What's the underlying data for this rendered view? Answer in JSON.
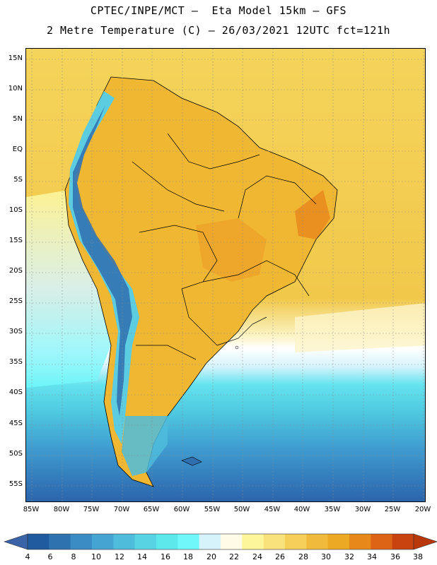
{
  "header": {
    "line1": "CPTEC/INPE/MCT –  Eta Model 15km – GFS",
    "line2": "2 Metre Temperature (C) – 26/03/2021 12UTC fct=121h"
  },
  "map": {
    "region": "South America",
    "lat_labels": [
      "15N",
      "10N",
      "5N",
      "EQ",
      "5S",
      "10S",
      "15S",
      "20S",
      "25S",
      "30S",
      "35S",
      "40S",
      "45S",
      "50S",
      "55S"
    ],
    "lon_labels": [
      "85W",
      "80W",
      "75W",
      "70W",
      "65W",
      "60W",
      "55W",
      "50W",
      "45W",
      "40W",
      "35W",
      "30W",
      "25W",
      "20W"
    ],
    "ocean_color": "#f2c94a",
    "land_color": "#f0b733"
  },
  "colorbar": {
    "labels": [
      "4",
      "6",
      "8",
      "10",
      "12",
      "14",
      "16",
      "18",
      "20",
      "22",
      "24",
      "26",
      "28",
      "30",
      "32",
      "34",
      "36",
      "38"
    ],
    "colors": [
      "#1f5b9e",
      "#2e72b0",
      "#3b8cc4",
      "#46a4d3",
      "#4fbcdc",
      "#57d3e3",
      "#5de8ec",
      "#6ff7f9",
      "#d6f3fb",
      "#fffbe6",
      "#fef69a",
      "#f9e27b",
      "#f5cf59",
      "#f0bb3c",
      "#ecaa24",
      "#e7891a",
      "#dd6414",
      "#c84310"
    ],
    "under_color": "#3b64a8",
    "over_color": "#b8380c"
  }
}
